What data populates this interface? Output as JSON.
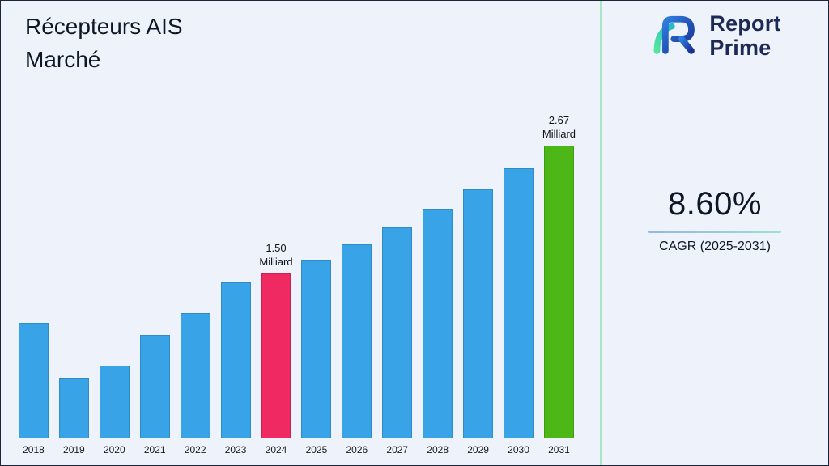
{
  "page": {
    "title": "Récepteurs AIS\nMarché"
  },
  "logo": {
    "icon": "report-prime-logo-icon",
    "line1": "Report",
    "line2": "Prime"
  },
  "stats": {
    "cagr_value": "8.60%",
    "cagr_label": "CAGR (2025-2031)"
  },
  "colors": {
    "background": "#edf2fb",
    "bar_default": "#39a3e8",
    "bar_highlight_2024": "#ef2a62",
    "bar_highlight_2031": "#4cb717",
    "divider": "#a9e6c6",
    "title_text": "#0d1726"
  },
  "chart_data": {
    "type": "bar",
    "title": "Récepteurs AIS Marché",
    "unit": "Milliard",
    "xlabel": "",
    "ylabel": "",
    "grid": false,
    "legend": "none",
    "ylim": [
      0,
      2.8
    ],
    "categories": [
      "2018",
      "2019",
      "2020",
      "2021",
      "2022",
      "2023",
      "2024",
      "2025",
      "2026",
      "2027",
      "2028",
      "2029",
      "2030",
      "2031"
    ],
    "values": [
      1.05,
      0.55,
      0.66,
      0.94,
      1.14,
      1.42,
      1.5,
      1.63,
      1.77,
      1.92,
      2.09,
      2.27,
      2.46,
      2.67
    ],
    "annotations": [
      {
        "category": "2024",
        "line1": "1.50",
        "line2": "Milliard"
      },
      {
        "category": "2031",
        "line1": "2.67",
        "line2": "Milliard"
      }
    ],
    "colors": {
      "default": "#39a3e8",
      "2024": "#ef2a62",
      "2031": "#4cb717"
    }
  }
}
